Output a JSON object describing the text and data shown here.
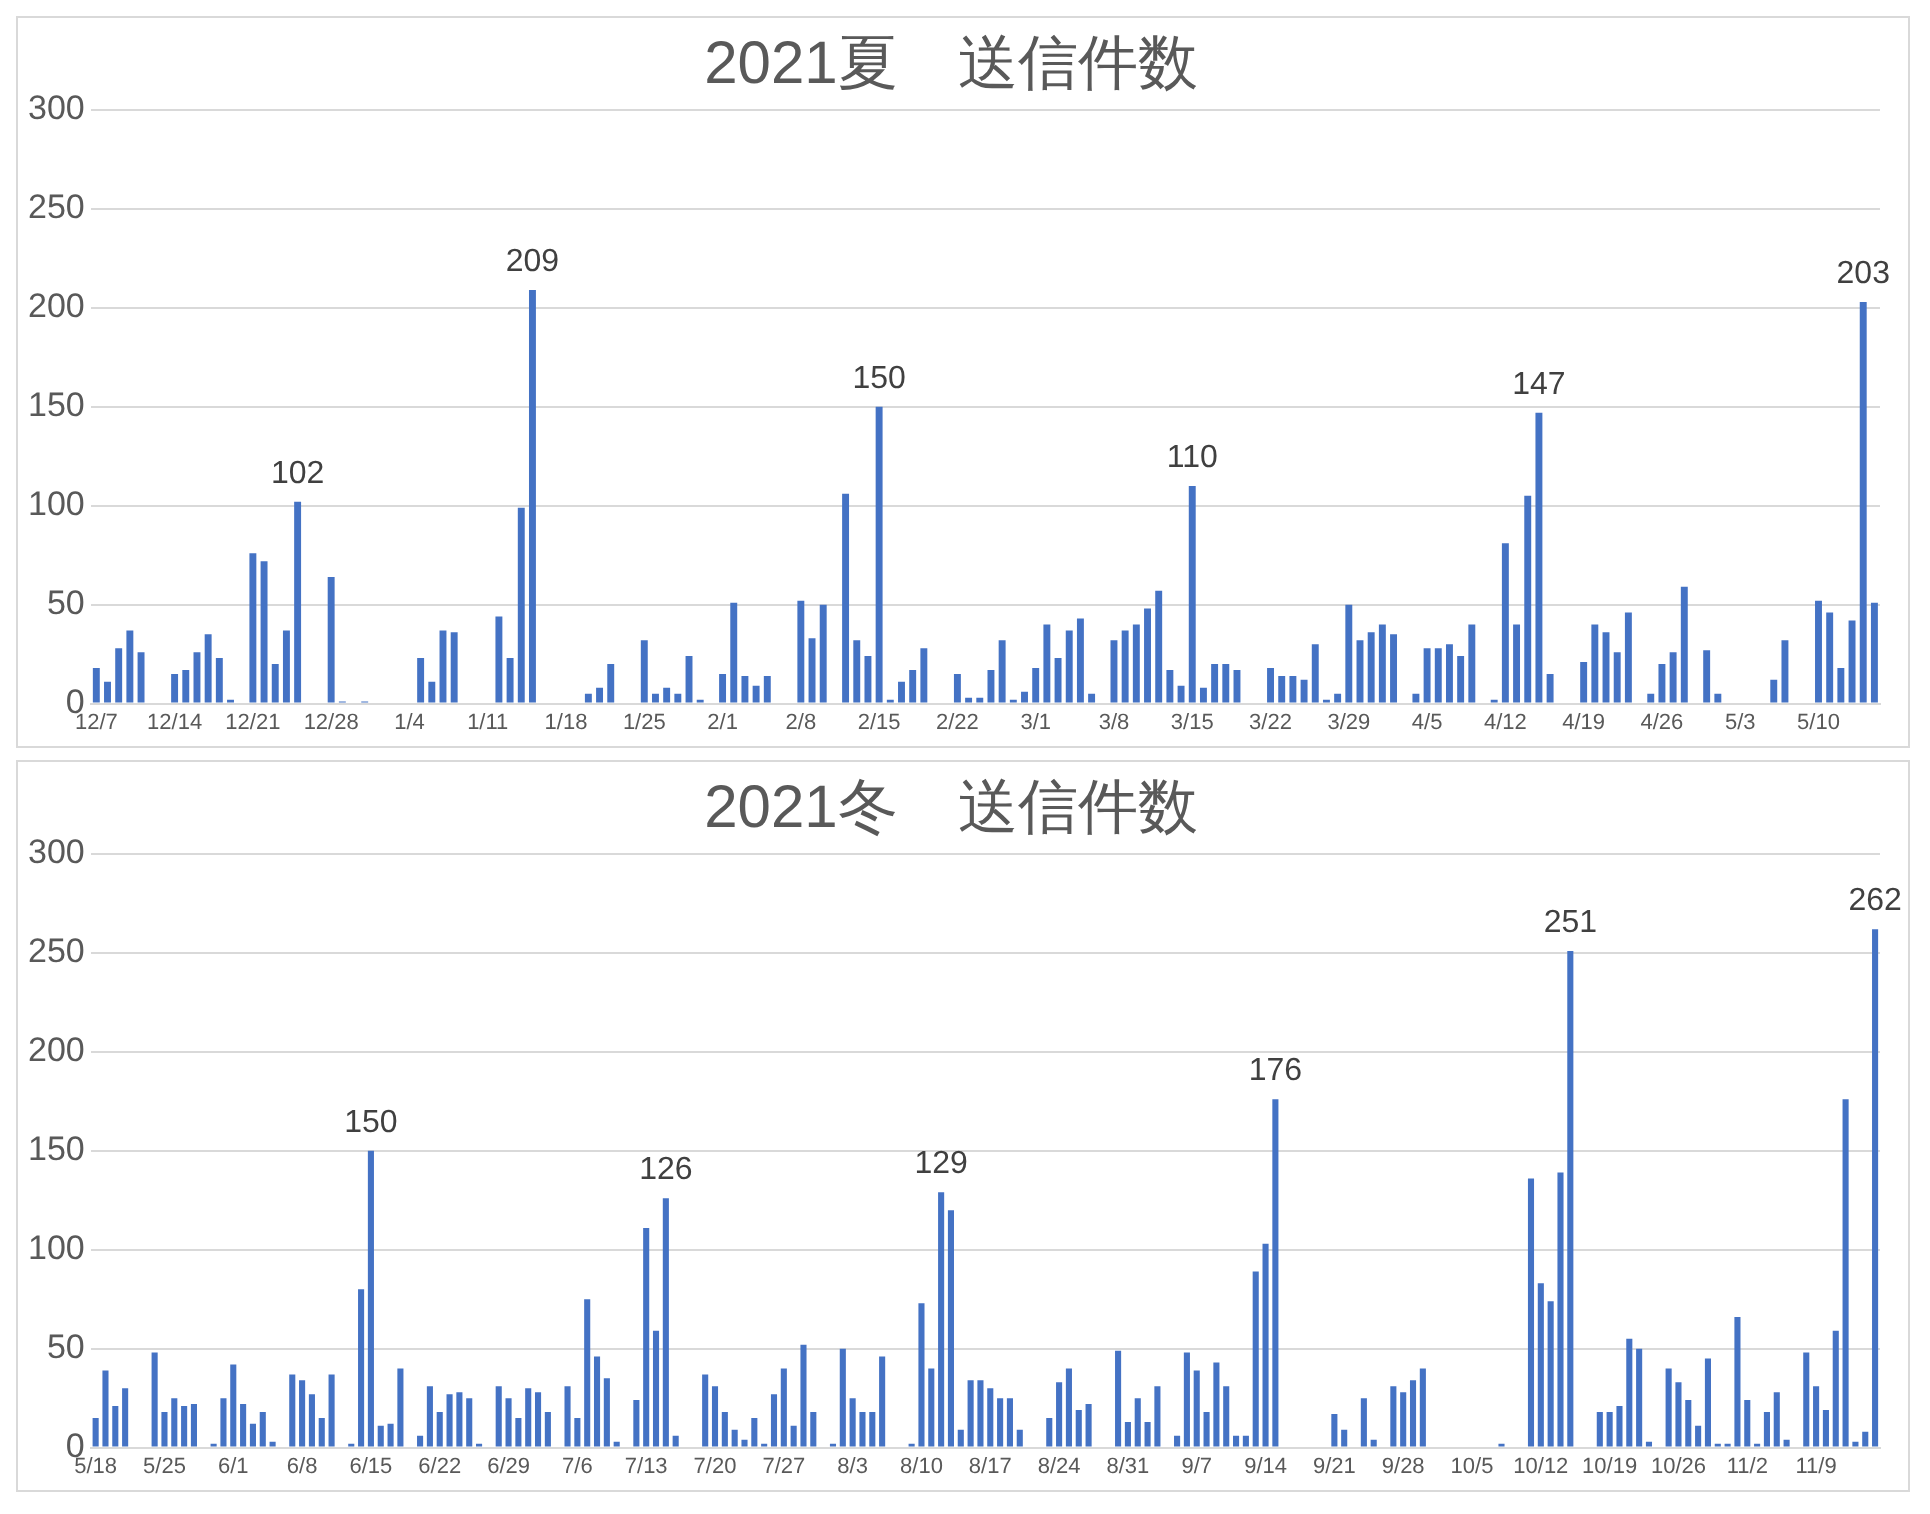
{
  "chart_data": [
    {
      "type": "bar",
      "title": "2021夏　送信件数",
      "categories": [
        "12/7",
        null,
        null,
        null,
        null,
        null,
        null,
        "12/14",
        null,
        null,
        null,
        null,
        null,
        null,
        "12/21",
        null,
        null,
        null,
        null,
        null,
        null,
        "12/28",
        null,
        null,
        null,
        null,
        null,
        null,
        "1/4",
        null,
        null,
        null,
        null,
        null,
        null,
        "1/11",
        null,
        null,
        null,
        null,
        null,
        null,
        "1/18",
        null,
        null,
        null,
        null,
        null,
        null,
        "1/25",
        null,
        null,
        null,
        null,
        null,
        null,
        "2/1",
        null,
        null,
        null,
        null,
        null,
        null,
        "2/8",
        null,
        null,
        null,
        null,
        null,
        null,
        "2/15",
        null,
        null,
        null,
        null,
        null,
        null,
        "2/22",
        null,
        null,
        null,
        null,
        null,
        null,
        "3/1",
        null,
        null,
        null,
        null,
        null,
        null,
        "3/8",
        null,
        null,
        null,
        null,
        null,
        null,
        "3/15",
        null,
        null,
        null,
        null,
        null,
        null,
        "3/22",
        null,
        null,
        null,
        null,
        null,
        null,
        "3/29",
        null,
        null,
        null,
        null,
        null,
        null,
        "4/5",
        null,
        null,
        null,
        null,
        null,
        null,
        "4/12",
        null,
        null,
        null,
        null,
        null,
        null,
        "4/19",
        null,
        null,
        null,
        null,
        null,
        null,
        "4/26",
        null,
        null,
        null,
        null,
        null,
        null,
        "5/3",
        null,
        null,
        null,
        null,
        null,
        null,
        "5/10",
        null,
        null,
        null,
        null,
        null
      ],
      "values": [
        18,
        11,
        28,
        37,
        26,
        0,
        0,
        15,
        17,
        26,
        35,
        23,
        2,
        0,
        76,
        72,
        20,
        37,
        102,
        0,
        0,
        64,
        1,
        0,
        1,
        0,
        0,
        0,
        0,
        23,
        11,
        37,
        36,
        0,
        0,
        0,
        44,
        23,
        99,
        209,
        0,
        0,
        0,
        0,
        5,
        8,
        20,
        0,
        0,
        32,
        5,
        8,
        5,
        24,
        2,
        0,
        15,
        51,
        14,
        9,
        14,
        0,
        0,
        52,
        33,
        50,
        0,
        106,
        32,
        24,
        150,
        2,
        11,
        17,
        28,
        0,
        0,
        15,
        3,
        3,
        17,
        32,
        2,
        6,
        18,
        40,
        23,
        37,
        43,
        5,
        0,
        32,
        37,
        40,
        48,
        57,
        17,
        9,
        110,
        8,
        20,
        20,
        17,
        0,
        0,
        18,
        14,
        14,
        12,
        30,
        2,
        5,
        50,
        32,
        36,
        40,
        35,
        0,
        5,
        28,
        28,
        30,
        24,
        40,
        0,
        2,
        81,
        40,
        105,
        147,
        15,
        0,
        0,
        21,
        40,
        36,
        26,
        46,
        0,
        5,
        20,
        26,
        59,
        0,
        27,
        5,
        0,
        0,
        0,
        0,
        12,
        32,
        0,
        0,
        52,
        46,
        18,
        42,
        203,
        51
      ],
      "value_labels": [
        null,
        null,
        null,
        null,
        null,
        null,
        null,
        null,
        null,
        null,
        null,
        null,
        null,
        null,
        null,
        null,
        null,
        null,
        "102",
        null,
        null,
        null,
        null,
        null,
        null,
        null,
        null,
        null,
        null,
        null,
        null,
        null,
        null,
        null,
        null,
        null,
        null,
        null,
        null,
        "209",
        null,
        null,
        null,
        null,
        null,
        null,
        null,
        null,
        null,
        null,
        null,
        null,
        null,
        null,
        null,
        null,
        null,
        null,
        null,
        null,
        null,
        null,
        null,
        null,
        null,
        null,
        null,
        null,
        null,
        null,
        "150",
        null,
        null,
        null,
        null,
        null,
        null,
        null,
        null,
        null,
        null,
        null,
        null,
        null,
        null,
        null,
        null,
        null,
        null,
        null,
        null,
        null,
        null,
        null,
        null,
        null,
        null,
        null,
        "110",
        null,
        null,
        null,
        null,
        null,
        null,
        null,
        null,
        null,
        null,
        null,
        null,
        null,
        null,
        null,
        null,
        null,
        null,
        null,
        null,
        null,
        null,
        null,
        null,
        null,
        null,
        null,
        null,
        null,
        null,
        "147",
        null,
        null,
        null,
        null,
        null,
        null,
        null,
        null,
        null,
        null,
        null,
        null,
        null,
        null,
        null,
        null,
        null,
        null,
        null,
        null,
        null,
        null,
        null,
        null,
        null,
        null,
        null,
        null,
        "203",
        null
      ],
      "color": "#4472c4",
      "ylim": [
        0,
        300
      ],
      "yticks": [
        0,
        50,
        100,
        150,
        200,
        250,
        300
      ],
      "grid": "y"
    },
    {
      "type": "bar",
      "title": "2021冬　送信件数",
      "categories": [
        "5/18",
        null,
        null,
        null,
        null,
        null,
        null,
        "5/25",
        null,
        null,
        null,
        null,
        null,
        null,
        "6/1",
        null,
        null,
        null,
        null,
        null,
        null,
        "6/8",
        null,
        null,
        null,
        null,
        null,
        null,
        "6/15",
        null,
        null,
        null,
        null,
        null,
        null,
        "6/22",
        null,
        null,
        null,
        null,
        null,
        null,
        "6/29",
        null,
        null,
        null,
        null,
        null,
        null,
        "7/6",
        null,
        null,
        null,
        null,
        null,
        null,
        "7/13",
        null,
        null,
        null,
        null,
        null,
        null,
        "7/20",
        null,
        null,
        null,
        null,
        null,
        null,
        "7/27",
        null,
        null,
        null,
        null,
        null,
        null,
        "8/3",
        null,
        null,
        null,
        null,
        null,
        null,
        "8/10",
        null,
        null,
        null,
        null,
        null,
        null,
        "8/17",
        null,
        null,
        null,
        null,
        null,
        null,
        "8/24",
        null,
        null,
        null,
        null,
        null,
        null,
        "8/31",
        null,
        null,
        null,
        null,
        null,
        null,
        "9/7",
        null,
        null,
        null,
        null,
        null,
        null,
        "9/14",
        null,
        null,
        null,
        null,
        null,
        null,
        "9/21",
        null,
        null,
        null,
        null,
        null,
        null,
        "9/28",
        null,
        null,
        null,
        null,
        null,
        null,
        "10/5",
        null,
        null,
        null,
        null,
        null,
        null,
        "10/12",
        null,
        null,
        null,
        null,
        null,
        null,
        "10/19",
        null,
        null,
        null,
        null,
        null,
        null,
        "10/26",
        null,
        null,
        null,
        null,
        null,
        null,
        "11/2",
        null,
        null,
        null,
        null,
        null,
        null,
        "11/9",
        null,
        null,
        null,
        null,
        null,
        null
      ],
      "values": [
        15,
        39,
        21,
        30,
        0,
        0,
        48,
        18,
        25,
        21,
        22,
        0,
        2,
        25,
        42,
        22,
        12,
        18,
        3,
        0,
        37,
        34,
        27,
        15,
        37,
        0,
        2,
        80,
        150,
        11,
        12,
        40,
        0,
        6,
        31,
        18,
        27,
        28,
        25,
        2,
        0,
        31,
        25,
        15,
        30,
        28,
        18,
        0,
        31,
        15,
        75,
        46,
        35,
        3,
        0,
        24,
        111,
        59,
        126,
        6,
        0,
        0,
        37,
        31,
        18,
        9,
        4,
        15,
        2,
        27,
        40,
        11,
        52,
        18,
        0,
        2,
        50,
        25,
        18,
        18,
        46,
        0,
        0,
        2,
        73,
        40,
        129,
        120,
        9,
        34,
        34,
        30,
        25,
        25,
        9,
        0,
        0,
        15,
        33,
        40,
        19,
        22,
        0,
        0,
        49,
        13,
        25,
        13,
        31,
        0,
        6,
        48,
        39,
        18,
        43,
        31,
        6,
        6,
        89,
        103,
        176,
        0,
        0,
        0,
        0,
        0,
        17,
        9,
        0,
        25,
        4,
        0,
        31,
        28,
        34,
        40,
        0,
        0,
        0,
        0,
        0,
        0,
        0,
        2,
        0,
        0,
        136,
        83,
        74,
        139,
        251,
        0,
        0,
        18,
        18,
        21,
        55,
        50,
        3,
        0,
        40,
        33,
        24,
        11,
        45,
        2,
        2,
        66,
        24,
        2,
        18,
        28,
        4,
        0,
        48,
        31,
        19,
        59,
        176,
        3,
        8,
        262
      ],
      "value_labels": [
        null,
        null,
        null,
        null,
        null,
        null,
        null,
        null,
        null,
        null,
        null,
        null,
        null,
        null,
        null,
        null,
        null,
        null,
        null,
        null,
        null,
        null,
        null,
        null,
        null,
        null,
        null,
        null,
        "150",
        null,
        null,
        null,
        null,
        null,
        null,
        null,
        null,
        null,
        null,
        null,
        null,
        null,
        null,
        null,
        null,
        null,
        null,
        null,
        null,
        null,
        null,
        null,
        null,
        null,
        null,
        null,
        null,
        null,
        "126",
        null,
        null,
        null,
        null,
        null,
        null,
        null,
        null,
        null,
        null,
        null,
        null,
        null,
        null,
        null,
        null,
        null,
        null,
        null,
        null,
        null,
        null,
        null,
        null,
        null,
        null,
        null,
        "129",
        null,
        null,
        null,
        null,
        null,
        null,
        null,
        null,
        null,
        null,
        null,
        null,
        null,
        null,
        null,
        null,
        null,
        null,
        null,
        null,
        null,
        null,
        null,
        null,
        null,
        null,
        null,
        null,
        null,
        null,
        null,
        null,
        null,
        "176",
        null,
        null,
        null,
        null,
        null,
        null,
        null,
        null,
        null,
        null,
        null,
        null,
        null,
        null,
        null,
        null,
        null,
        null,
        null,
        null,
        null,
        null,
        null,
        null,
        null,
        null,
        null,
        null,
        null,
        "251",
        null,
        null,
        null,
        null,
        null,
        null,
        null,
        null,
        null,
        null,
        null,
        null,
        null,
        null,
        null,
        null,
        null,
        null,
        null,
        null,
        null,
        null,
        null,
        null,
        null,
        null,
        null,
        null,
        null,
        null,
        "262"
      ],
      "color": "#4472c4",
      "ylim": [
        0,
        300
      ],
      "yticks": [
        0,
        50,
        100,
        150,
        200,
        250,
        300
      ],
      "grid": "y"
    }
  ]
}
